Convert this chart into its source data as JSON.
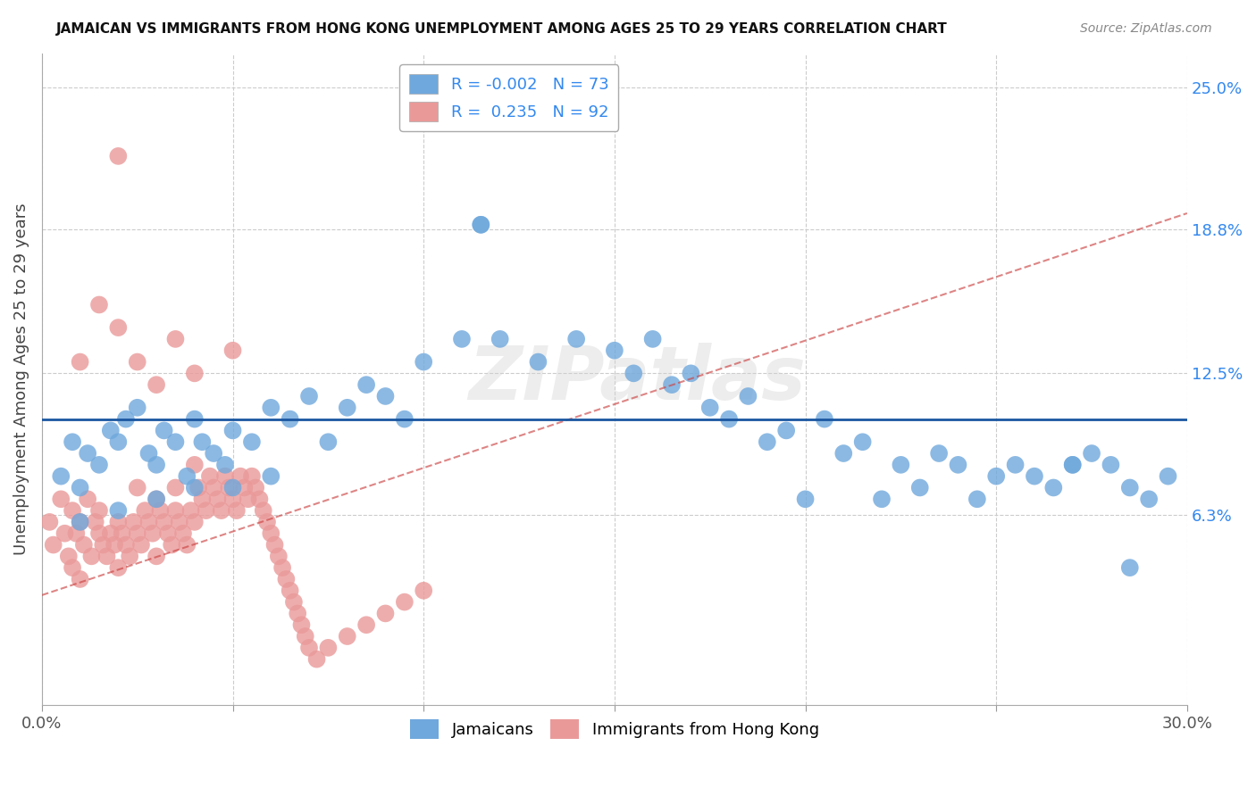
{
  "title": "JAMAICAN VS IMMIGRANTS FROM HONG KONG UNEMPLOYMENT AMONG AGES 25 TO 29 YEARS CORRELATION CHART",
  "source": "Source: ZipAtlas.com",
  "ylabel": "Unemployment Among Ages 25 to 29 years",
  "xlim": [
    0.0,
    0.3
  ],
  "ylim": [
    -0.02,
    0.265
  ],
  "ytick_labels_right": [
    "6.3%",
    "12.5%",
    "18.8%",
    "25.0%"
  ],
  "ytick_values_right": [
    0.063,
    0.125,
    0.188,
    0.25
  ],
  "blue_horizontal_line_y": 0.105,
  "blue_R": -0.002,
  "blue_N": 73,
  "pink_R": 0.235,
  "pink_N": 92,
  "blue_color": "#6fa8dc",
  "pink_color": "#ea9999",
  "blue_line_color": "#1a56a0",
  "pink_line_color": "#cc4444",
  "watermark": "ZIPatlas",
  "legend_label_blue": "Jamaicans",
  "legend_label_pink": "Immigrants from Hong Kong",
  "blue_scatter_x": [
    0.005,
    0.008,
    0.01,
    0.012,
    0.015,
    0.018,
    0.02,
    0.022,
    0.025,
    0.028,
    0.03,
    0.032,
    0.035,
    0.038,
    0.04,
    0.042,
    0.045,
    0.048,
    0.05,
    0.055,
    0.06,
    0.065,
    0.07,
    0.075,
    0.08,
    0.085,
    0.09,
    0.095,
    0.1,
    0.11,
    0.115,
    0.12,
    0.13,
    0.14,
    0.15,
    0.155,
    0.16,
    0.165,
    0.17,
    0.175,
    0.18,
    0.185,
    0.19,
    0.195,
    0.2,
    0.205,
    0.21,
    0.215,
    0.22,
    0.225,
    0.23,
    0.235,
    0.24,
    0.245,
    0.25,
    0.255,
    0.26,
    0.265,
    0.27,
    0.275,
    0.28,
    0.285,
    0.29,
    0.295,
    0.01,
    0.02,
    0.03,
    0.04,
    0.05,
    0.06,
    0.115,
    0.27,
    0.285
  ],
  "blue_scatter_y": [
    0.08,
    0.095,
    0.075,
    0.09,
    0.085,
    0.1,
    0.095,
    0.105,
    0.11,
    0.09,
    0.085,
    0.1,
    0.095,
    0.08,
    0.105,
    0.095,
    0.09,
    0.085,
    0.1,
    0.095,
    0.11,
    0.105,
    0.115,
    0.095,
    0.11,
    0.12,
    0.115,
    0.105,
    0.13,
    0.14,
    0.19,
    0.14,
    0.13,
    0.14,
    0.135,
    0.125,
    0.14,
    0.12,
    0.125,
    0.11,
    0.105,
    0.115,
    0.095,
    0.1,
    0.07,
    0.105,
    0.09,
    0.095,
    0.07,
    0.085,
    0.075,
    0.09,
    0.085,
    0.07,
    0.08,
    0.085,
    0.08,
    0.075,
    0.085,
    0.09,
    0.085,
    0.075,
    0.07,
    0.08,
    0.06,
    0.065,
    0.07,
    0.075,
    0.075,
    0.08,
    0.19,
    0.085,
    0.04
  ],
  "pink_scatter_x": [
    0.002,
    0.003,
    0.005,
    0.006,
    0.007,
    0.008,
    0.008,
    0.009,
    0.01,
    0.01,
    0.011,
    0.012,
    0.013,
    0.014,
    0.015,
    0.015,
    0.016,
    0.017,
    0.018,
    0.019,
    0.02,
    0.02,
    0.021,
    0.022,
    0.023,
    0.024,
    0.025,
    0.025,
    0.026,
    0.027,
    0.028,
    0.029,
    0.03,
    0.03,
    0.031,
    0.032,
    0.033,
    0.034,
    0.035,
    0.035,
    0.036,
    0.037,
    0.038,
    0.039,
    0.04,
    0.04,
    0.041,
    0.042,
    0.043,
    0.044,
    0.045,
    0.046,
    0.047,
    0.048,
    0.049,
    0.05,
    0.051,
    0.052,
    0.053,
    0.054,
    0.055,
    0.056,
    0.057,
    0.058,
    0.059,
    0.06,
    0.061,
    0.062,
    0.063,
    0.064,
    0.065,
    0.066,
    0.067,
    0.068,
    0.069,
    0.07,
    0.072,
    0.075,
    0.08,
    0.085,
    0.09,
    0.095,
    0.1,
    0.01,
    0.015,
    0.02,
    0.025,
    0.03,
    0.02,
    0.035,
    0.04,
    0.05
  ],
  "pink_scatter_y": [
    0.06,
    0.05,
    0.07,
    0.055,
    0.045,
    0.065,
    0.04,
    0.055,
    0.06,
    0.035,
    0.05,
    0.07,
    0.045,
    0.06,
    0.055,
    0.065,
    0.05,
    0.045,
    0.055,
    0.05,
    0.06,
    0.04,
    0.055,
    0.05,
    0.045,
    0.06,
    0.055,
    0.075,
    0.05,
    0.065,
    0.06,
    0.055,
    0.07,
    0.045,
    0.065,
    0.06,
    0.055,
    0.05,
    0.065,
    0.075,
    0.06,
    0.055,
    0.05,
    0.065,
    0.06,
    0.085,
    0.075,
    0.07,
    0.065,
    0.08,
    0.075,
    0.07,
    0.065,
    0.08,
    0.075,
    0.07,
    0.065,
    0.08,
    0.075,
    0.07,
    0.08,
    0.075,
    0.07,
    0.065,
    0.06,
    0.055,
    0.05,
    0.045,
    0.04,
    0.035,
    0.03,
    0.025,
    0.02,
    0.015,
    0.01,
    0.005,
    0.0,
    0.005,
    0.01,
    0.015,
    0.02,
    0.025,
    0.03,
    0.13,
    0.155,
    0.145,
    0.13,
    0.12,
    0.22,
    0.14,
    0.125,
    0.135
  ],
  "pink_line_x0": 0.0,
  "pink_line_y0": 0.028,
  "pink_line_x1": 0.3,
  "pink_line_y1": 0.195
}
